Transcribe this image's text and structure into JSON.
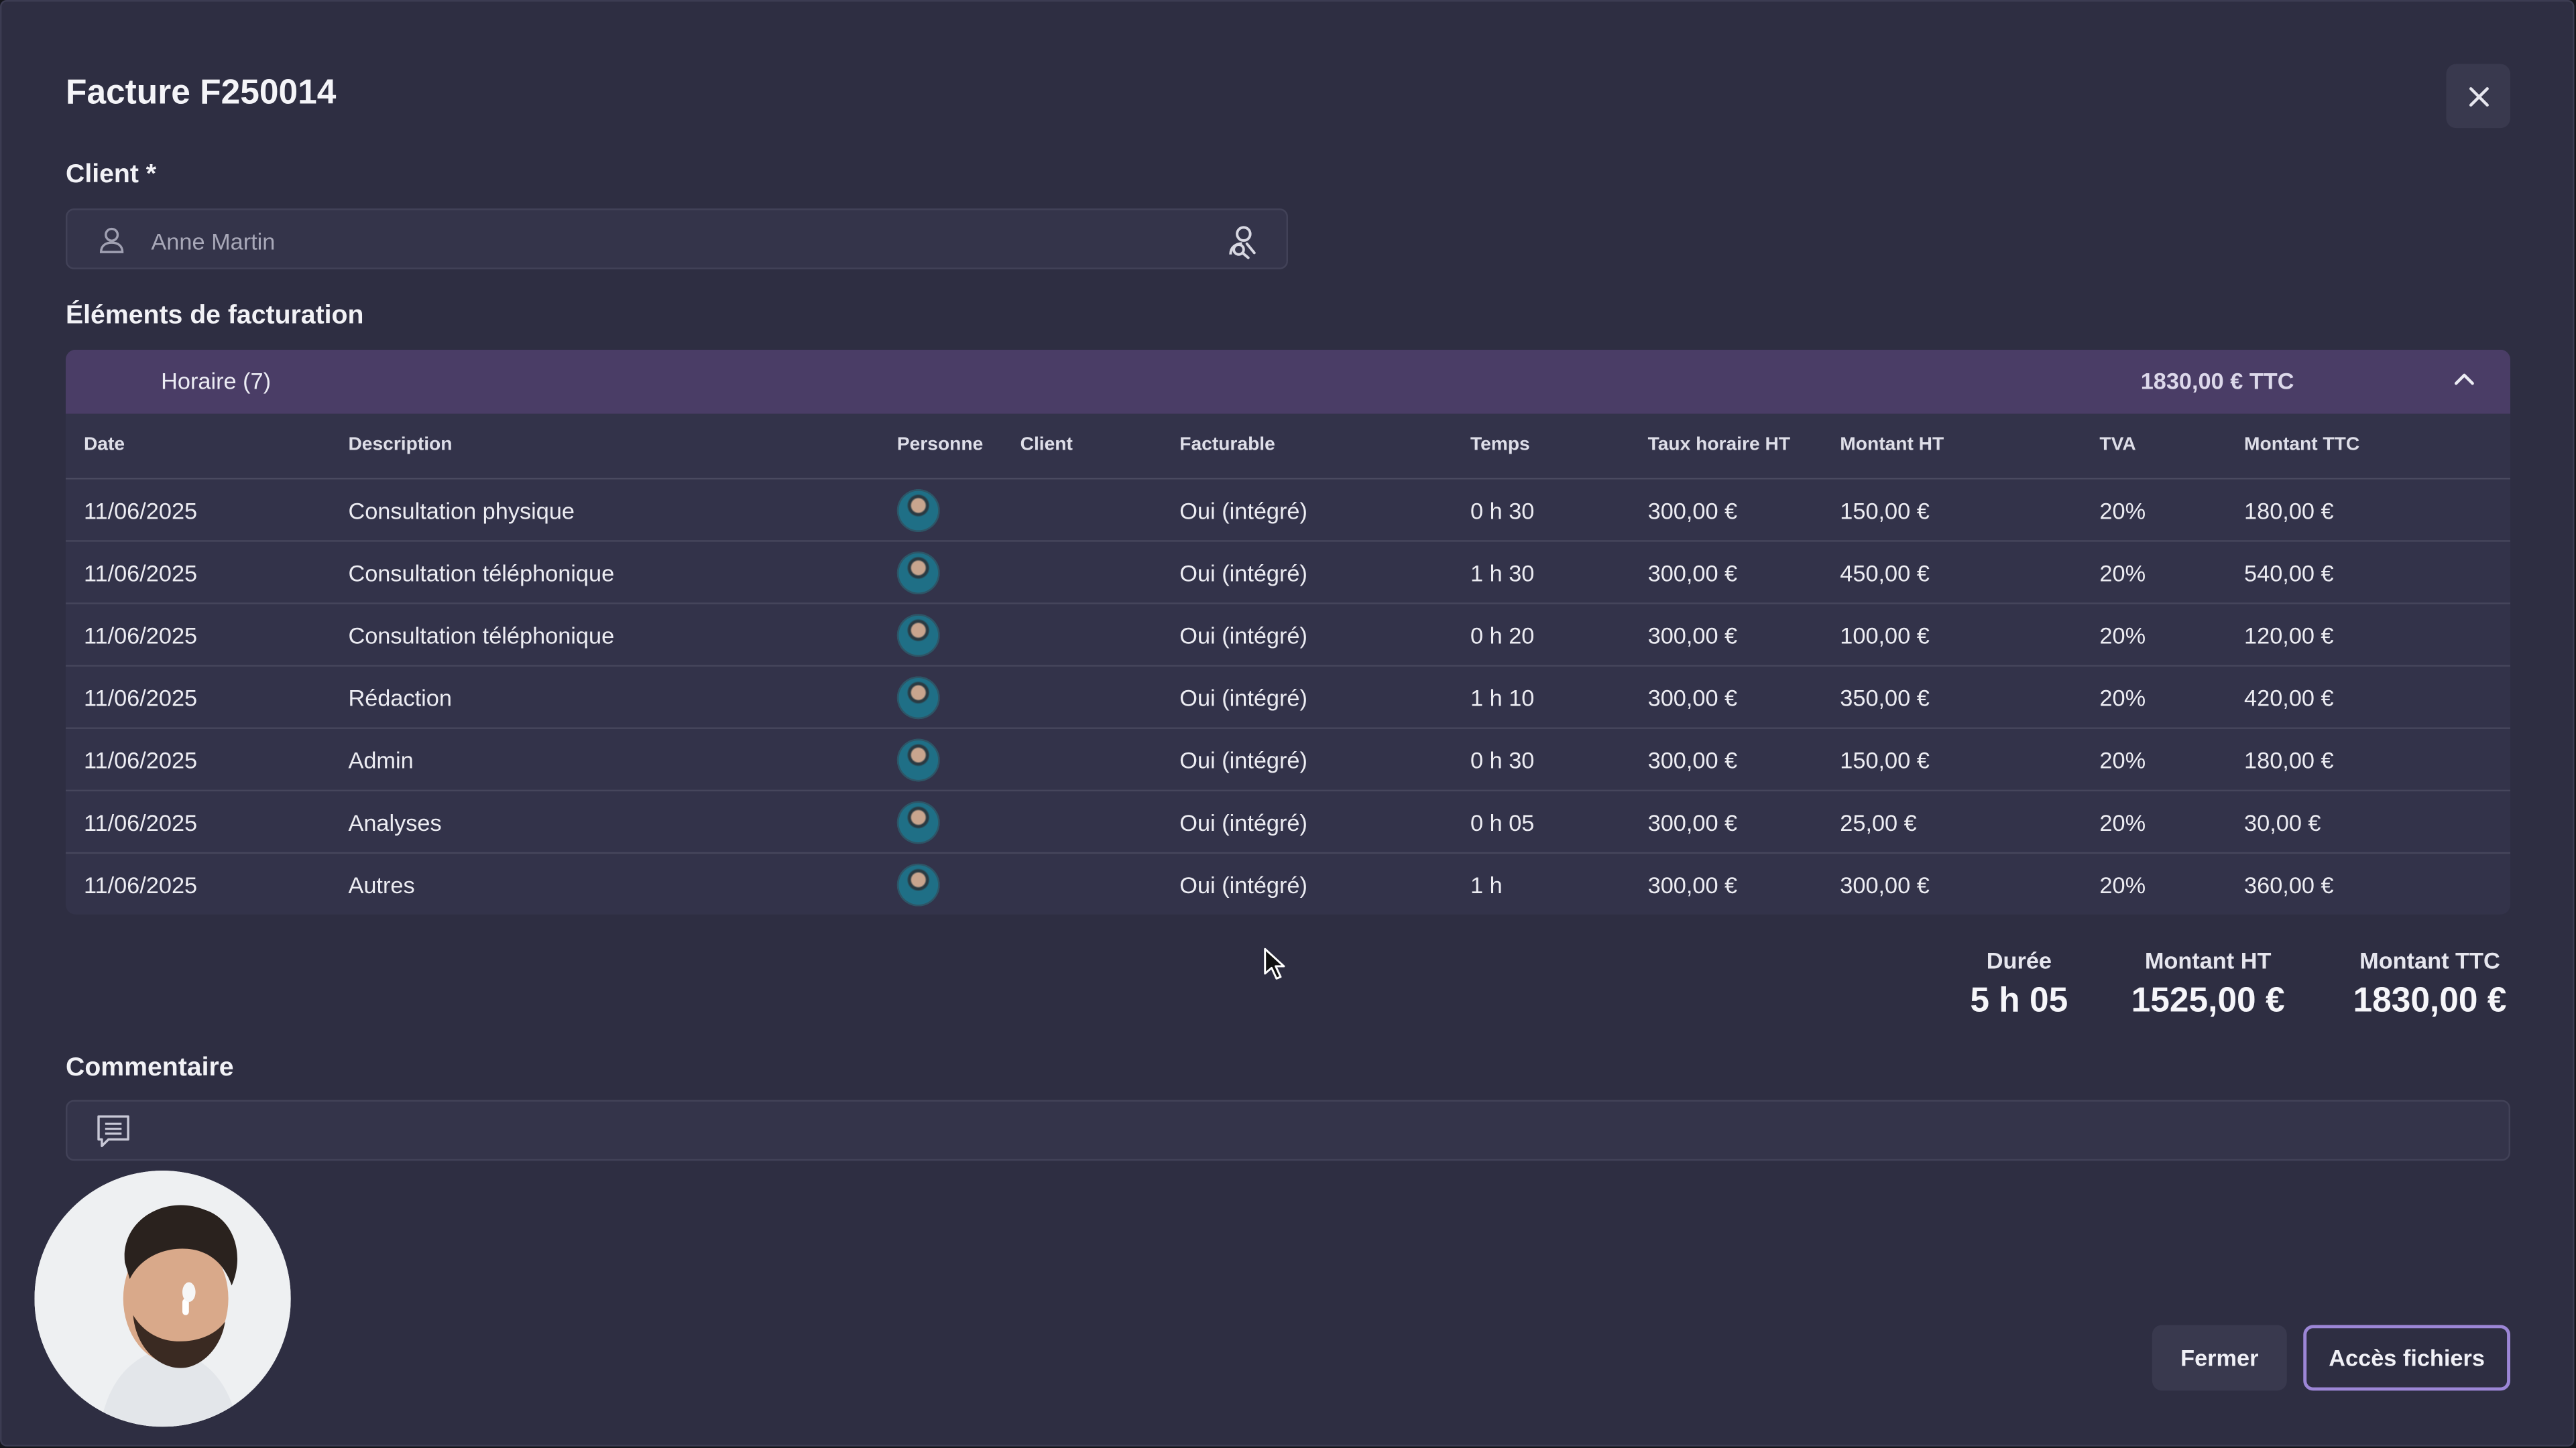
{
  "invoice": {
    "title": "Facture F250014"
  },
  "client": {
    "label": "Client *",
    "placeholder": "Anne Martin"
  },
  "billing": {
    "label": "Éléments de facturation",
    "group": {
      "name": "Horaire (7)",
      "total": "1830,00 € TTC"
    },
    "columns": {
      "date": "Date",
      "description": "Description",
      "personne": "Personne",
      "client": "Client",
      "facturable": "Facturable",
      "temps": "Temps",
      "taux": "Taux horaire HT",
      "montant_ht": "Montant HT",
      "tva": "TVA",
      "montant_ttc": "Montant TTC"
    },
    "rows": [
      {
        "date": "11/06/2025",
        "description": "Consultation physique",
        "client": "",
        "facturable": "Oui (intégré)",
        "temps": "0 h 30",
        "taux": "300,00 €",
        "montant_ht": "150,00 €",
        "tva": "20%",
        "montant_ttc": "180,00 €"
      },
      {
        "date": "11/06/2025",
        "description": "Consultation téléphonique",
        "client": "",
        "facturable": "Oui (intégré)",
        "temps": "1 h 30",
        "taux": "300,00 €",
        "montant_ht": "450,00 €",
        "tva": "20%",
        "montant_ttc": "540,00 €"
      },
      {
        "date": "11/06/2025",
        "description": "Consultation téléphonique",
        "client": "",
        "facturable": "Oui (intégré)",
        "temps": "0 h 20",
        "taux": "300,00 €",
        "montant_ht": "100,00 €",
        "tva": "20%",
        "montant_ttc": "120,00 €"
      },
      {
        "date": "11/06/2025",
        "description": "Rédaction",
        "client": "",
        "facturable": "Oui (intégré)",
        "temps": "1 h 10",
        "taux": "300,00 €",
        "montant_ht": "350,00 €",
        "tva": "20%",
        "montant_ttc": "420,00 €"
      },
      {
        "date": "11/06/2025",
        "description": "Admin",
        "client": "",
        "facturable": "Oui (intégré)",
        "temps": "0 h 30",
        "taux": "300,00 €",
        "montant_ht": "150,00 €",
        "tva": "20%",
        "montant_ttc": "180,00 €"
      },
      {
        "date": "11/06/2025",
        "description": "Analyses",
        "client": "",
        "facturable": "Oui (intégré)",
        "temps": "0 h 05",
        "taux": "300,00 €",
        "montant_ht": "25,00 €",
        "tva": "20%",
        "montant_ttc": "30,00 €"
      },
      {
        "date": "11/06/2025",
        "description": "Autres",
        "client": "",
        "facturable": "Oui (intégré)",
        "temps": "1 h",
        "taux": "300,00 €",
        "montant_ht": "300,00 €",
        "tva": "20%",
        "montant_ttc": "360,00 €"
      }
    ]
  },
  "summary": {
    "duree_label": "Durée",
    "duree_value": "5 h 05",
    "ht_label": "Montant HT",
    "ht_value": "1525,00 €",
    "ttc_label": "Montant TTC",
    "ttc_value": "1830,00 €"
  },
  "comment": {
    "label": "Commentaire",
    "value": ""
  },
  "actions": {
    "close_label": "Fermer",
    "files_label": "Accès fichiers"
  },
  "icons": {
    "close": "close-icon",
    "user": "user-icon",
    "search": "user-search-icon",
    "collapse": "chevron-up-icon",
    "comment": "comment-icon",
    "cursor": "mouse-cursor-icon"
  },
  "colors": {
    "background": "#2e2e42",
    "group_header": "#4a3d66",
    "accent_border": "#9c86d6"
  }
}
